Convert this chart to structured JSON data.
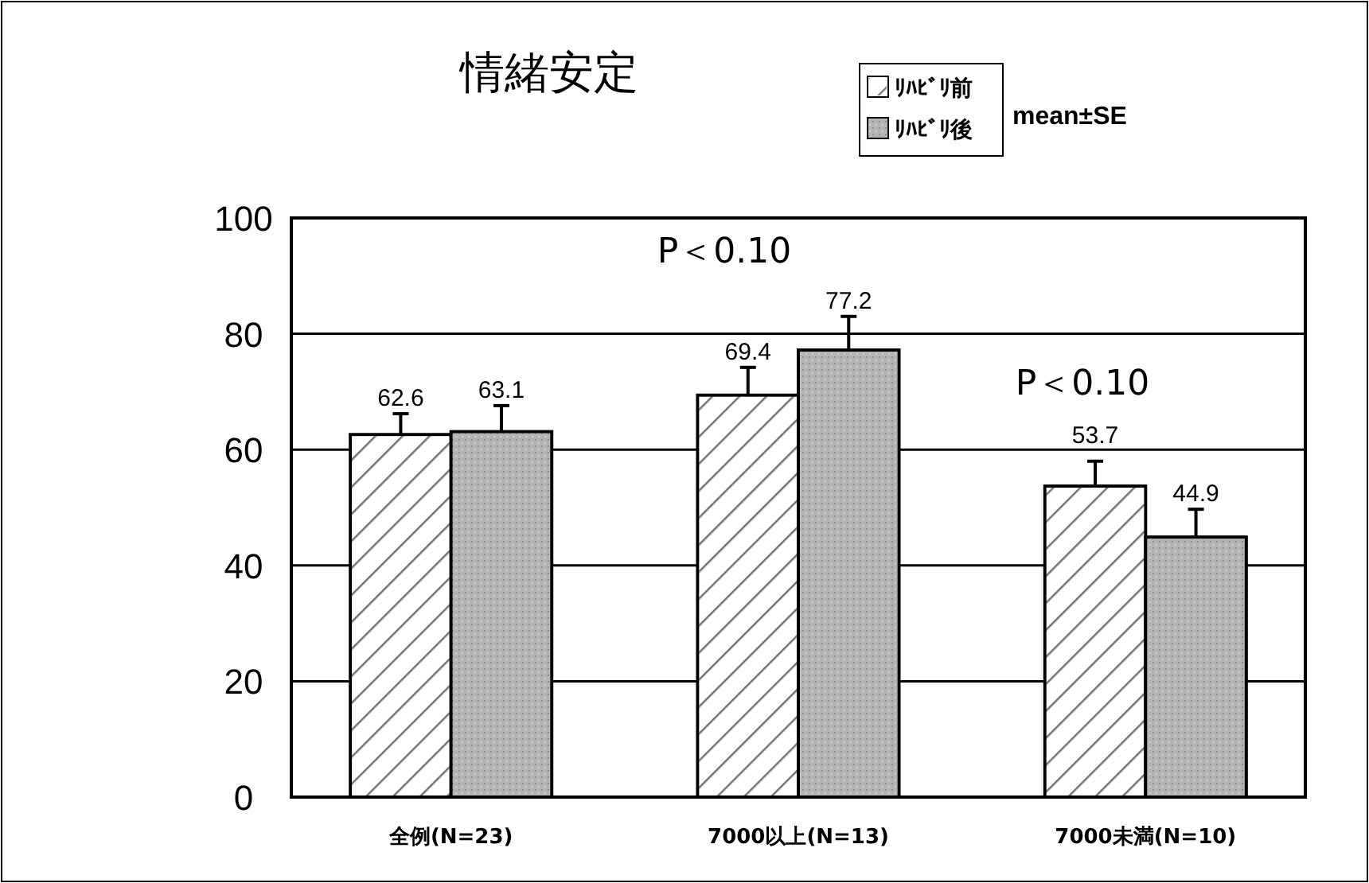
{
  "chart_data": {
    "type": "bar",
    "title": "情緒安定",
    "categories": [
      "全例(N=23)",
      "7000以上(N=13)",
      "7000未満(N=10)"
    ],
    "series": [
      {
        "name": "ﾘﾊﾋﾞﾘ前",
        "color": "#ffffff",
        "values": [
          62.6,
          69.4,
          53.7
        ],
        "errors": [
          [
            62.6,
            66.2
          ],
          [
            69.4,
            74.2
          ],
          [
            53.7,
            58.0
          ]
        ]
      },
      {
        "name": "ﾘﾊﾋﾞﾘ後",
        "color": "#b4b4b4",
        "values": [
          63.1,
          77.2,
          44.9
        ],
        "errors": [
          [
            63.1,
            67.6
          ],
          [
            77.2,
            83.0
          ],
          [
            44.9,
            49.7
          ]
        ]
      }
    ],
    "ylim": [
      0,
      100
    ],
    "yticks": [
      0,
      20,
      40,
      60,
      80,
      100
    ],
    "grid": "y",
    "legend": "top right",
    "data_labels": true,
    "annotations": [
      "P＜0.10",
      "P＜0.10",
      "mean±SE"
    ]
  }
}
